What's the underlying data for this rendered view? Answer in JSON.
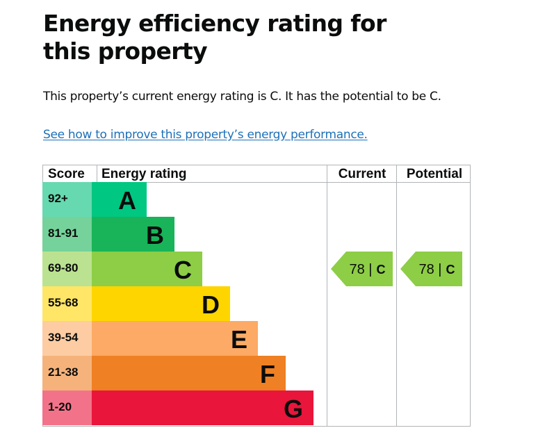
{
  "page": {
    "title": "Energy efficiency rating for this property",
    "summary": "This property’s current energy rating is C. It has the potential to be C.",
    "improve_link": "See how to improve this property’s energy performance."
  },
  "chart_data": {
    "type": "bar",
    "headers": {
      "score": "Score",
      "rating": "Energy rating",
      "current": "Current",
      "potential": "Potential"
    },
    "bands": [
      {
        "letter": "A",
        "range": "92+",
        "bar_color": "#00c781",
        "score_bg": "#66d9b0"
      },
      {
        "letter": "B",
        "range": "81-91",
        "bar_color": "#19b459",
        "score_bg": "#75d29b"
      },
      {
        "letter": "C",
        "range": "69-80",
        "bar_color": "#8dce46",
        "score_bg": "#bbe290"
      },
      {
        "letter": "D",
        "range": "55-68",
        "bar_color": "#ffd500",
        "score_bg": "#ffe666"
      },
      {
        "letter": "E",
        "range": "39-54",
        "bar_color": "#fcaa65",
        "score_bg": "#fdcca3"
      },
      {
        "letter": "F",
        "range": "21-38",
        "bar_color": "#ef8023",
        "score_bg": "#f5b37b"
      },
      {
        "letter": "G",
        "range": "1-20",
        "bar_color": "#e9153b",
        "score_bg": "#f27389"
      }
    ],
    "current": {
      "score": 78,
      "letter": "C"
    },
    "potential": {
      "score": 78,
      "letter": "C"
    }
  }
}
